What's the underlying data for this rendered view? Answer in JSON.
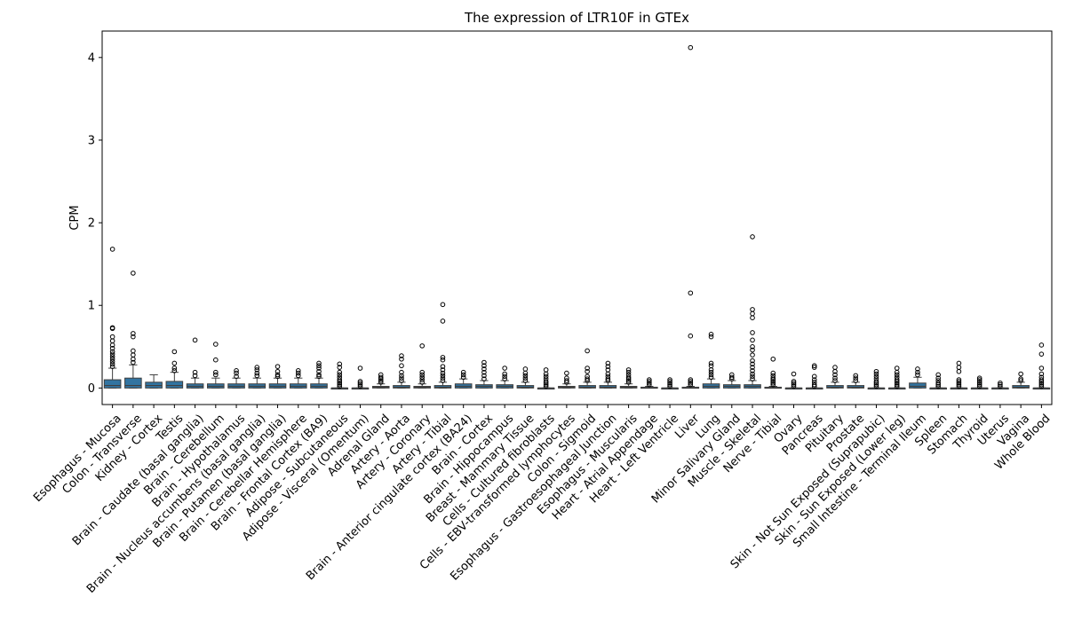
{
  "chart_data": {
    "type": "box",
    "title": "The expression of LTR10F in GTEx",
    "xlabel": "",
    "ylabel": "CPM",
    "ylim": [
      -0.2,
      4.32
    ],
    "yticks": [
      0,
      1,
      2,
      3,
      4
    ],
    "grid": false,
    "box_color": "#3274a1",
    "categories": [
      "Esophagus - Mucosa",
      "Colon - Transverse",
      "Kidney - Cortex",
      "Testis",
      "Brain - Caudate (basal ganglia)",
      "Brain - Cerebellum",
      "Brain - Hypothalamus",
      "Brain - Nucleus accumbens (basal ganglia)",
      "Brain - Putamen (basal ganglia)",
      "Brain - Cerebellar Hemisphere",
      "Brain - Frontal Cortex (BA9)",
      "Adipose - Subcutaneous",
      "Adipose - Visceral (Omentum)",
      "Adrenal Gland",
      "Artery - Aorta",
      "Artery - Coronary",
      "Artery - Tibial",
      "Brain - Anterior cingulate cortex (BA24)",
      "Brain - Cortex",
      "Brain - Hippocampus",
      "Breast - Mammary Tissue",
      "Cells - Cultured fibroblasts",
      "Cells - EBV-transformed lymphocytes",
      "Colon - Sigmoid",
      "Esophagus - Gastroesophageal Junction",
      "Esophagus - Muscularis",
      "Heart - Atrial Appendage",
      "Heart - Left Ventricle",
      "Liver",
      "Lung",
      "Minor Salivary Gland",
      "Muscle - Skeletal",
      "Nerve - Tibial",
      "Ovary",
      "Pancreas",
      "Pituitary",
      "Prostate",
      "Skin - Not Sun Exposed (Suprapubic)",
      "Skin - Sun Exposed (Lower leg)",
      "Small Intestine - Terminal Ileum",
      "Spleen",
      "Stomach",
      "Thyroid",
      "Uterus",
      "Vagina",
      "Whole Blood"
    ],
    "boxes": [
      {
        "q1": 0.0,
        "median": 0.03,
        "q3": 0.1,
        "whislo": 0.0,
        "whishi": 0.24,
        "fliers": [
          0.26,
          0.29,
          0.32,
          0.35,
          0.38,
          0.41,
          0.44,
          0.48,
          0.52,
          0.57,
          0.62,
          0.72,
          0.73,
          1.68
        ]
      },
      {
        "q1": 0.0,
        "median": 0.03,
        "q3": 0.12,
        "whislo": 0.0,
        "whishi": 0.28,
        "fliers": [
          0.31,
          0.35,
          0.4,
          0.45,
          0.62,
          0.66,
          1.39
        ]
      },
      {
        "q1": 0.0,
        "median": 0.03,
        "q3": 0.07,
        "whislo": 0.0,
        "whishi": 0.16,
        "fliers": []
      },
      {
        "q1": 0.0,
        "median": 0.03,
        "q3": 0.08,
        "whislo": 0.0,
        "whishi": 0.19,
        "fliers": [
          0.21,
          0.24,
          0.3,
          0.44
        ]
      },
      {
        "q1": 0.0,
        "median": 0.02,
        "q3": 0.05,
        "whislo": 0.0,
        "whishi": 0.12,
        "fliers": [
          0.15,
          0.19,
          0.58
        ]
      },
      {
        "q1": 0.0,
        "median": 0.02,
        "q3": 0.05,
        "whislo": 0.0,
        "whishi": 0.12,
        "fliers": [
          0.16,
          0.19,
          0.34,
          0.53
        ]
      },
      {
        "q1": 0.0,
        "median": 0.02,
        "q3": 0.05,
        "whislo": 0.0,
        "whishi": 0.12,
        "fliers": [
          0.14,
          0.18,
          0.21
        ]
      },
      {
        "q1": 0.0,
        "median": 0.02,
        "q3": 0.05,
        "whislo": 0.0,
        "whishi": 0.12,
        "fliers": [
          0.15,
          0.18,
          0.22,
          0.25
        ]
      },
      {
        "q1": 0.0,
        "median": 0.02,
        "q3": 0.05,
        "whislo": 0.0,
        "whishi": 0.12,
        "fliers": [
          0.14,
          0.16,
          0.2,
          0.26
        ]
      },
      {
        "q1": 0.0,
        "median": 0.02,
        "q3": 0.05,
        "whislo": 0.0,
        "whishi": 0.12,
        "fliers": [
          0.15,
          0.18,
          0.21
        ]
      },
      {
        "q1": 0.0,
        "median": 0.02,
        "q3": 0.05,
        "whislo": 0.0,
        "whishi": 0.12,
        "fliers": [
          0.14,
          0.16,
          0.2,
          0.24,
          0.27,
          0.3
        ]
      },
      {
        "q1": 0.0,
        "median": 0.0,
        "q3": 0.0,
        "whislo": 0.0,
        "whishi": 0.0,
        "fliers": [
          0.02,
          0.04,
          0.06,
          0.08,
          0.1,
          0.13,
          0.16,
          0.19,
          0.25,
          0.29
        ]
      },
      {
        "q1": 0.0,
        "median": 0.0,
        "q3": 0.0,
        "whislo": 0.0,
        "whishi": 0.0,
        "fliers": [
          0.02,
          0.04,
          0.06,
          0.08,
          0.24
        ]
      },
      {
        "q1": 0.0,
        "median": 0.01,
        "q3": 0.02,
        "whislo": 0.0,
        "whishi": 0.05,
        "fliers": [
          0.07,
          0.09,
          0.11,
          0.13,
          0.16
        ]
      },
      {
        "q1": 0.0,
        "median": 0.01,
        "q3": 0.03,
        "whislo": 0.0,
        "whishi": 0.07,
        "fliers": [
          0.09,
          0.12,
          0.15,
          0.19,
          0.27,
          0.35,
          0.39
        ]
      },
      {
        "q1": 0.0,
        "median": 0.01,
        "q3": 0.02,
        "whislo": 0.0,
        "whishi": 0.05,
        "fliers": [
          0.07,
          0.1,
          0.13,
          0.16,
          0.19,
          0.51
        ]
      },
      {
        "q1": 0.0,
        "median": 0.01,
        "q3": 0.03,
        "whislo": 0.0,
        "whishi": 0.07,
        "fliers": [
          0.09,
          0.12,
          0.15,
          0.18,
          0.22,
          0.26,
          0.34,
          0.37,
          0.81,
          1.01
        ]
      },
      {
        "q1": 0.0,
        "median": 0.02,
        "q3": 0.05,
        "whislo": 0.0,
        "whishi": 0.11,
        "fliers": [
          0.13,
          0.16,
          0.19
        ]
      },
      {
        "q1": 0.0,
        "median": 0.02,
        "q3": 0.04,
        "whislo": 0.0,
        "whishi": 0.09,
        "fliers": [
          0.11,
          0.15,
          0.19,
          0.23,
          0.27,
          0.31
        ]
      },
      {
        "q1": 0.0,
        "median": 0.02,
        "q3": 0.04,
        "whislo": 0.0,
        "whishi": 0.09,
        "fliers": [
          0.11,
          0.14,
          0.17,
          0.24
        ]
      },
      {
        "q1": 0.0,
        "median": 0.01,
        "q3": 0.03,
        "whislo": 0.0,
        "whishi": 0.07,
        "fliers": [
          0.09,
          0.12,
          0.15,
          0.18,
          0.23
        ]
      },
      {
        "q1": 0.0,
        "median": 0.0,
        "q3": 0.0,
        "whislo": 0.0,
        "whishi": 0.0,
        "fliers": [
          0.02,
          0.04,
          0.06,
          0.08,
          0.11,
          0.14,
          0.17,
          0.22
        ]
      },
      {
        "q1": 0.0,
        "median": 0.01,
        "q3": 0.02,
        "whislo": 0.0,
        "whishi": 0.05,
        "fliers": [
          0.07,
          0.09,
          0.12,
          0.18
        ]
      },
      {
        "q1": 0.0,
        "median": 0.01,
        "q3": 0.03,
        "whislo": 0.0,
        "whishi": 0.07,
        "fliers": [
          0.09,
          0.11,
          0.14,
          0.2,
          0.24,
          0.45
        ]
      },
      {
        "q1": 0.0,
        "median": 0.01,
        "q3": 0.03,
        "whislo": 0.0,
        "whishi": 0.07,
        "fliers": [
          0.09,
          0.11,
          0.14,
          0.17,
          0.22,
          0.26,
          0.3
        ]
      },
      {
        "q1": 0.0,
        "median": 0.01,
        "q3": 0.02,
        "whislo": 0.0,
        "whishi": 0.05,
        "fliers": [
          0.07,
          0.09,
          0.11,
          0.13,
          0.16,
          0.19,
          0.22
        ]
      },
      {
        "q1": 0.0,
        "median": 0.0,
        "q3": 0.01,
        "whislo": 0.0,
        "whishi": 0.02,
        "fliers": [
          0.04,
          0.06,
          0.08,
          0.1
        ]
      },
      {
        "q1": 0.0,
        "median": 0.0,
        "q3": 0.0,
        "whislo": 0.0,
        "whishi": 0.0,
        "fliers": [
          0.02,
          0.04,
          0.06,
          0.08,
          0.1
        ]
      },
      {
        "q1": 0.0,
        "median": 0.0,
        "q3": 0.01,
        "whislo": 0.0,
        "whishi": 0.02,
        "fliers": [
          0.04,
          0.06,
          0.08,
          0.1,
          0.63,
          1.15,
          4.12
        ]
      },
      {
        "q1": 0.0,
        "median": 0.02,
        "q3": 0.05,
        "whislo": 0.0,
        "whishi": 0.11,
        "fliers": [
          0.13,
          0.16,
          0.19,
          0.22,
          0.27,
          0.3,
          0.62,
          0.65
        ]
      },
      {
        "q1": 0.0,
        "median": 0.02,
        "q3": 0.04,
        "whislo": 0.0,
        "whishi": 0.09,
        "fliers": [
          0.11,
          0.13,
          0.16
        ]
      },
      {
        "q1": 0.0,
        "median": 0.02,
        "q3": 0.04,
        "whislo": 0.0,
        "whishi": 0.09,
        "fliers": [
          0.11,
          0.14,
          0.17,
          0.21,
          0.25,
          0.29,
          0.33,
          0.4,
          0.46,
          0.5,
          0.58,
          0.67,
          0.85,
          0.9,
          0.95,
          1.83
        ]
      },
      {
        "q1": 0.0,
        "median": 0.0,
        "q3": 0.01,
        "whislo": 0.0,
        "whishi": 0.02,
        "fliers": [
          0.04,
          0.06,
          0.08,
          0.1,
          0.12,
          0.15,
          0.18,
          0.35
        ]
      },
      {
        "q1": 0.0,
        "median": 0.0,
        "q3": 0.0,
        "whislo": 0.0,
        "whishi": 0.0,
        "fliers": [
          0.02,
          0.04,
          0.06,
          0.08,
          0.17
        ]
      },
      {
        "q1": 0.0,
        "median": 0.0,
        "q3": 0.0,
        "whislo": 0.0,
        "whishi": 0.0,
        "fliers": [
          0.02,
          0.04,
          0.07,
          0.1,
          0.14,
          0.25,
          0.27
        ]
      },
      {
        "q1": 0.0,
        "median": 0.01,
        "q3": 0.03,
        "whislo": 0.0,
        "whishi": 0.07,
        "fliers": [
          0.09,
          0.12,
          0.16,
          0.2,
          0.25
        ]
      },
      {
        "q1": 0.0,
        "median": 0.01,
        "q3": 0.03,
        "whislo": 0.0,
        "whishi": 0.07,
        "fliers": [
          0.09,
          0.12,
          0.15
        ]
      },
      {
        "q1": 0.0,
        "median": 0.0,
        "q3": 0.0,
        "whislo": 0.0,
        "whishi": 0.0,
        "fliers": [
          0.02,
          0.04,
          0.06,
          0.08,
          0.11,
          0.14,
          0.17,
          0.2
        ]
      },
      {
        "q1": 0.0,
        "median": 0.0,
        "q3": 0.0,
        "whislo": 0.0,
        "whishi": 0.0,
        "fliers": [
          0.02,
          0.04,
          0.06,
          0.08,
          0.1,
          0.13,
          0.16,
          0.19,
          0.24
        ]
      },
      {
        "q1": 0.0,
        "median": 0.02,
        "q3": 0.06,
        "whislo": 0.0,
        "whishi": 0.13,
        "fliers": [
          0.16,
          0.19,
          0.23
        ]
      },
      {
        "q1": 0.0,
        "median": 0.0,
        "q3": 0.0,
        "whislo": 0.0,
        "whishi": 0.0,
        "fliers": [
          0.02,
          0.04,
          0.06,
          0.09,
          0.12,
          0.16
        ]
      },
      {
        "q1": 0.0,
        "median": 0.0,
        "q3": 0.0,
        "whislo": 0.0,
        "whishi": 0.0,
        "fliers": [
          0.02,
          0.04,
          0.06,
          0.08,
          0.1,
          0.2,
          0.25,
          0.3
        ]
      },
      {
        "q1": 0.0,
        "median": 0.0,
        "q3": 0.0,
        "whislo": 0.0,
        "whishi": 0.0,
        "fliers": [
          0.02,
          0.04,
          0.06,
          0.08,
          0.1,
          0.12
        ]
      },
      {
        "q1": 0.0,
        "median": 0.0,
        "q3": 0.0,
        "whislo": 0.0,
        "whishi": 0.0,
        "fliers": [
          0.02,
          0.04,
          0.06
        ]
      },
      {
        "q1": 0.0,
        "median": 0.01,
        "q3": 0.03,
        "whislo": 0.0,
        "whishi": 0.07,
        "fliers": [
          0.09,
          0.11,
          0.17
        ]
      },
      {
        "q1": 0.0,
        "median": 0.0,
        "q3": 0.0,
        "whislo": 0.0,
        "whishi": 0.0,
        "fliers": [
          0.02,
          0.04,
          0.06,
          0.08,
          0.1,
          0.13,
          0.17,
          0.24,
          0.41,
          0.52
        ]
      }
    ]
  }
}
